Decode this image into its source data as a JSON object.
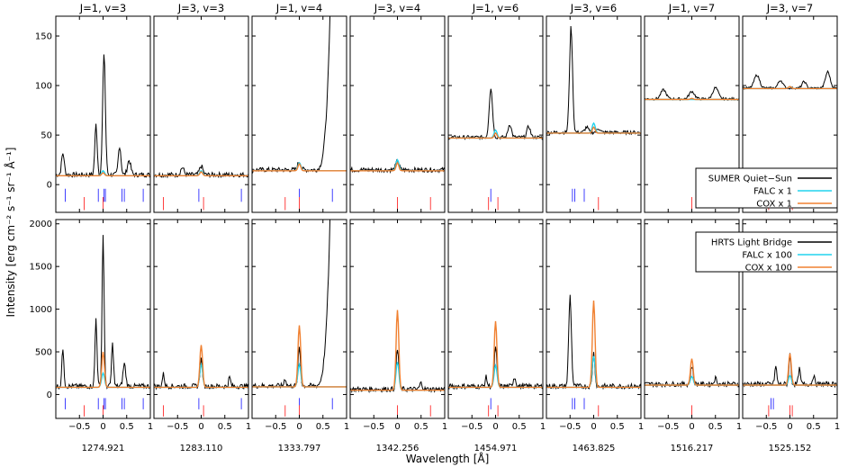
{
  "chart_data": {
    "type": "line",
    "ylabel": "Intensity [erg cm⁻² s⁻¹ sr⁻¹ Å⁻¹]",
    "xlabel": "Wavelength [Å]",
    "xlim": [
      -1,
      1
    ],
    "x_ticks": [
      "−0.5",
      "0",
      "0.5",
      "1"
    ],
    "columns": [
      {
        "title": "J=1, v=3",
        "wavelength": "1274.921"
      },
      {
        "title": "J=3, v=3",
        "wavelength": "1283.110"
      },
      {
        "title": "J=1, v=4",
        "wavelength": "1333.797"
      },
      {
        "title": "J=3, v=4",
        "wavelength": "1342.256"
      },
      {
        "title": "J=1, v=6",
        "wavelength": "1454.971"
      },
      {
        "title": "J=3, v=6",
        "wavelength": "1463.825"
      },
      {
        "title": "J=1, v=7",
        "wavelength": "1516.217"
      },
      {
        "title": "J=3, v=7",
        "wavelength": "1525.152"
      }
    ],
    "rows": [
      {
        "id": "top",
        "ylim": [
          -28,
          170
        ],
        "y_ticks": [
          0,
          50,
          100,
          150
        ],
        "legend": [
          {
            "label": "SUMER Quiet−Sun",
            "color": "#000000"
          },
          {
            "label": "FALC x 1",
            "color": "#22d3ee"
          },
          {
            "label": "COX x 1",
            "color": "#f08030"
          }
        ],
        "baseline": [
          9,
          9,
          14,
          14,
          47,
          52,
          86,
          97
        ],
        "falc_peak": [
          14,
          14,
          22,
          25,
          55,
          62,
          86,
          99
        ],
        "cox_peak": [
          12,
          13,
          21,
          22,
          52,
          58,
          87,
          99
        ]
      },
      {
        "id": "bottom",
        "ylim": [
          -280,
          2050
        ],
        "y_ticks": [
          0,
          500,
          1000,
          1500,
          2000
        ],
        "legend": [
          {
            "label": "HRTS Light Bridge",
            "color": "#000000"
          },
          {
            "label": "FALC x 100",
            "color": "#22d3ee"
          },
          {
            "label": "COX x 100",
            "color": "#f08030"
          }
        ],
        "baseline": [
          85,
          85,
          90,
          50,
          85,
          85,
          110,
          110
        ],
        "falc_peak": [
          250,
          350,
          350,
          380,
          340,
          450,
          210,
          220
        ],
        "cox_peak": [
          500,
          580,
          810,
          990,
          860,
          1100,
          420,
          480
        ]
      }
    ]
  }
}
